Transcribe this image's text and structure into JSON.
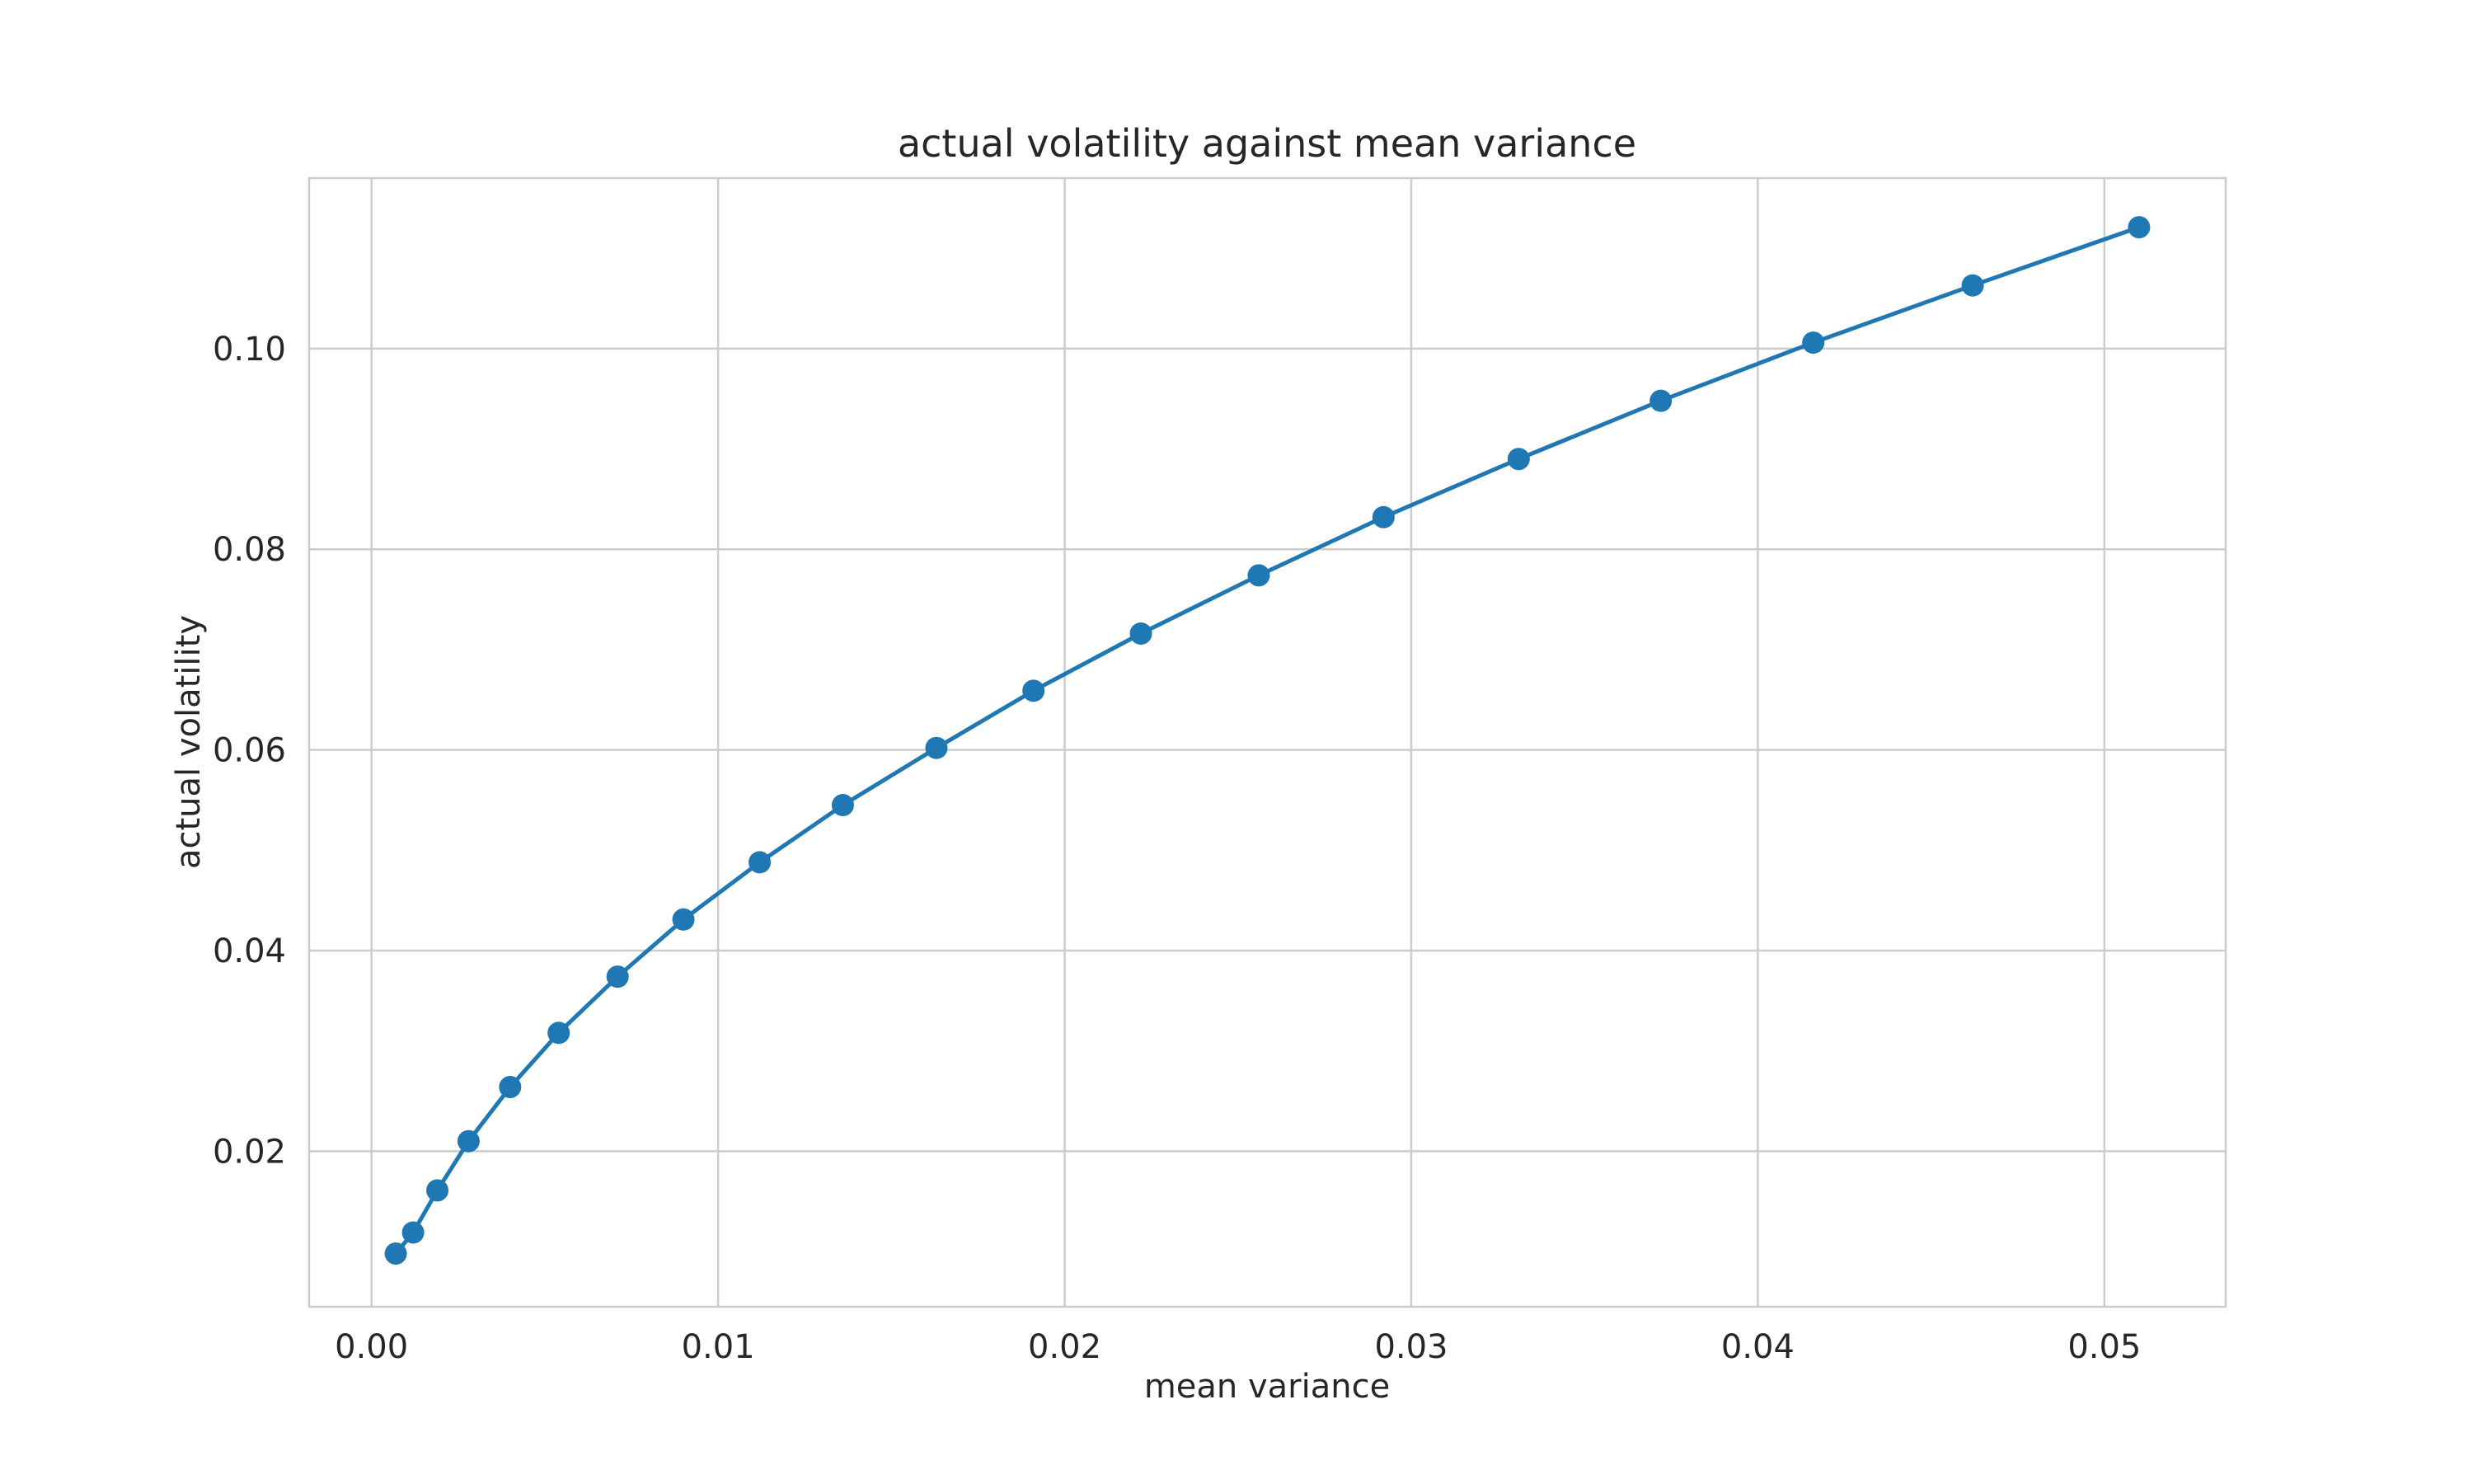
{
  "chart_data": {
    "type": "line",
    "title": "actual volatility against mean variance",
    "xlabel": "mean variance",
    "ylabel": "actual volatility",
    "xlim": [
      -0.0018,
      0.0535
    ],
    "ylim": [
      0.0045,
      0.117
    ],
    "xticks": [
      0.0,
      0.01,
      0.02,
      0.03,
      0.04,
      0.05
    ],
    "xtick_labels": [
      "0.00",
      "0.01",
      "0.02",
      "0.03",
      "0.04",
      "0.05"
    ],
    "yticks": [
      0.02,
      0.04,
      0.06,
      0.08,
      0.1
    ],
    "ytick_labels": [
      "0.02",
      "0.04",
      "0.06",
      "0.08",
      "0.10"
    ],
    "grid": true,
    "legend": "none",
    "series": [
      {
        "color": "#1f77b4",
        "marker": "circle",
        "x": [
          0.0007,
          0.0012,
          0.0019,
          0.0028,
          0.004,
          0.0054,
          0.0071,
          0.009,
          0.0112,
          0.0136,
          0.0163,
          0.0191,
          0.0222,
          0.0256,
          0.0292,
          0.0331,
          0.0372,
          0.0416,
          0.0462,
          0.051
        ],
        "y": [
          0.0098,
          0.0119,
          0.0161,
          0.021,
          0.0264,
          0.0318,
          0.0374,
          0.0431,
          0.0488,
          0.0545,
          0.0602,
          0.0659,
          0.0716,
          0.0774,
          0.0832,
          0.089,
          0.0948,
          0.1006,
          0.1063,
          0.1121
        ]
      }
    ]
  }
}
